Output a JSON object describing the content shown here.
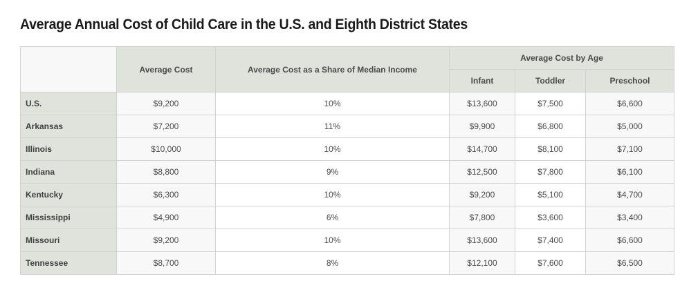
{
  "title": "Average Annual Cost of Child Care in the U.S. and Eighth District States",
  "headers": {
    "average_cost": "Average Cost",
    "share_of_income": "Average Cost as a Share of Median Income",
    "by_age_group": "Average Cost by Age",
    "infant": "Infant",
    "toddler": "Toddler",
    "preschool": "Preschool"
  },
  "rows": [
    {
      "state": "U.S.",
      "avg": "$9,200",
      "share": "10%",
      "infant": "$13,600",
      "toddler": "$7,500",
      "preschool": "$6,600"
    },
    {
      "state": "Arkansas",
      "avg": "$7,200",
      "share": "11%",
      "infant": "$9,900",
      "toddler": "$6,800",
      "preschool": "$5,000"
    },
    {
      "state": "Illinois",
      "avg": "$10,000",
      "share": "10%",
      "infant": "$14,700",
      "toddler": "$8,100",
      "preschool": "$7,100"
    },
    {
      "state": "Indiana",
      "avg": "$8,800",
      "share": "9%",
      "infant": "$12,500",
      "toddler": "$7,800",
      "preschool": "$6,100"
    },
    {
      "state": "Kentucky",
      "avg": "$6,300",
      "share": "10%",
      "infant": "$9,200",
      "toddler": "$5,100",
      "preschool": "$4,700"
    },
    {
      "state": "Mississippi",
      "avg": "$4,900",
      "share": "6%",
      "infant": "$7,800",
      "toddler": "$3,600",
      "preschool": "$3,400"
    },
    {
      "state": "Missouri",
      "avg": "$9,200",
      "share": "10%",
      "infant": "$13,600",
      "toddler": "$7,400",
      "preschool": "$6,600"
    },
    {
      "state": "Tennessee",
      "avg": "$8,700",
      "share": "8%",
      "infant": "$12,100",
      "toddler": "$7,600",
      "preschool": "$6,500"
    }
  ],
  "colors": {
    "header_bg": "#dfe3db",
    "cell_bg": "#f8f8f8",
    "alt_cell_bg": "#ffffff",
    "border": "#d2d2d2"
  }
}
